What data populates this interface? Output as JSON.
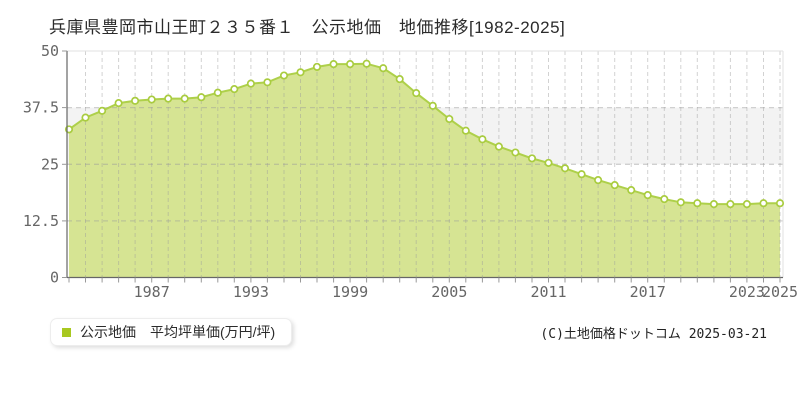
{
  "header": {
    "title": "兵庫県豊岡市山王町２３５番１　公示地価　地価推移[1982-2025]"
  },
  "chart_data": {
    "type": "area",
    "title": "兵庫県豊岡市山王町２３５番１ 公示地価 地価推移[1982-2025]",
    "series_name": "公示地価　平均坪単価(万円/坪)",
    "x": [
      1982,
      1983,
      1984,
      1985,
      1986,
      1987,
      1988,
      1989,
      1990,
      1991,
      1992,
      1993,
      1994,
      1995,
      1996,
      1997,
      1998,
      1999,
      2000,
      2001,
      2002,
      2003,
      2004,
      2005,
      2006,
      2007,
      2008,
      2009,
      2010,
      2011,
      2012,
      2013,
      2014,
      2015,
      2016,
      2017,
      2018,
      2019,
      2020,
      2021,
      2022,
      2023,
      2024,
      2025
    ],
    "values": [
      32.7,
      35.3,
      36.8,
      38.5,
      39.0,
      39.3,
      39.5,
      39.5,
      39.8,
      40.8,
      41.6,
      42.8,
      43.1,
      44.6,
      45.3,
      46.5,
      47.1,
      47.1,
      47.2,
      46.2,
      43.8,
      40.7,
      37.9,
      35.0,
      32.4,
      30.5,
      28.9,
      27.6,
      26.3,
      25.3,
      24.1,
      22.8,
      21.5,
      20.4,
      19.3,
      18.2,
      17.3,
      16.6,
      16.4,
      16.2,
      16.2,
      16.2,
      16.4,
      16.4
    ],
    "xlabel": "",
    "ylabel": "",
    "ylim": [
      0,
      50
    ],
    "yticks": [
      0,
      12.5,
      25,
      37.5,
      50
    ],
    "ytick_labels": [
      "0",
      "12.5",
      "25",
      "37.5",
      "50"
    ],
    "xtick_labels": [
      "1987",
      "1993",
      "1999",
      "2005",
      "2011",
      "2017",
      "2023",
      "2025"
    ],
    "grid": true,
    "legend_position": "bottom-left",
    "colors": {
      "area_fill": "#d6e493",
      "line": "#aed04a",
      "marker_fill": "#ffffff",
      "marker_stroke": "#a9cc3f",
      "grid": "#9b9b9b",
      "band": "#f3f3f3",
      "axis": "#666666",
      "border": "#e2e2e2",
      "tick": "#999999",
      "tick_label": "#666666",
      "legend_marker": "#a8c820"
    }
  },
  "legend": {
    "label": "公示地価　平均坪単価(万円/坪)"
  },
  "footer": {
    "copyright": "(C)土地価格ドットコム 2025-03-21"
  }
}
